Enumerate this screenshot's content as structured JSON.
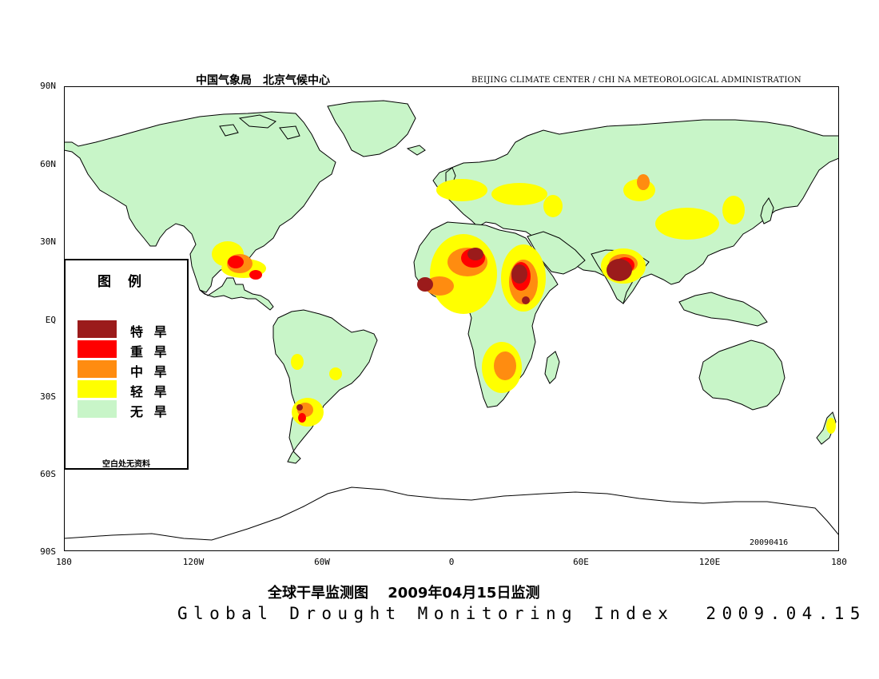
{
  "header": {
    "org_cn": "中国气象局　北京气候中心",
    "org_en": "BEIJING CLIMATE CENTER / CHI NA METEOROLOGICAL ADMINISTRATION"
  },
  "axes": {
    "lat_labels": [
      "90N",
      "60N",
      "30N",
      "EQ",
      "30S",
      "60S",
      "90S"
    ],
    "lon_labels": [
      "180",
      "120W",
      "60W",
      "0",
      "60E",
      "120E",
      "180"
    ]
  },
  "datestamp": "20090416",
  "title_cn": "全球干旱监测图　 2009年04月15日监测",
  "title_en": "Global Drought Monitoring Index  2009.04.15",
  "legend": {
    "title": "图　例",
    "items": [
      {
        "label": "特 旱",
        "color": "#9b1b1b"
      },
      {
        "label": "重 旱",
        "color": "#ff0000"
      },
      {
        "label": "中 旱",
        "color": "#ff8c10"
      },
      {
        "label": "轻 旱",
        "color": "#ffff00"
      },
      {
        "label": "无 旱",
        "color": "#c8f5c8"
      }
    ],
    "note": "空白处无资料"
  },
  "colors": {
    "no_drought": "#c8f5c8",
    "coast": "#000000"
  }
}
